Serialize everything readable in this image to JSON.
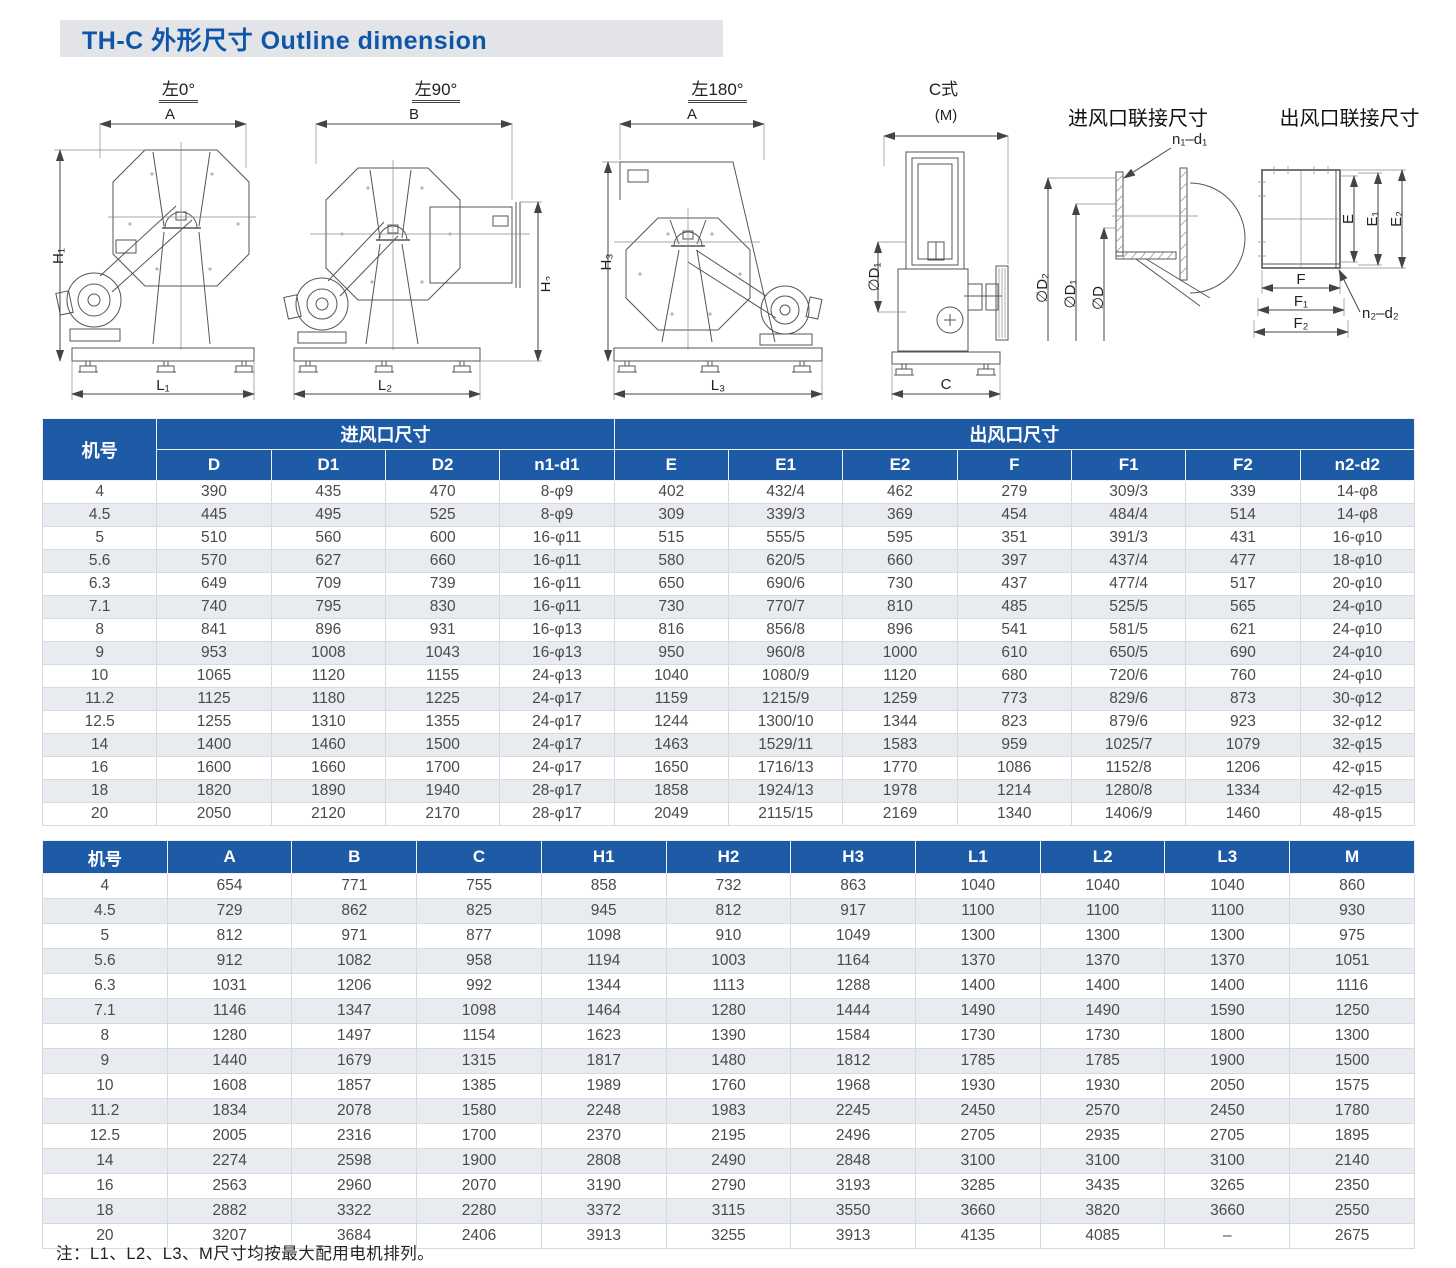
{
  "page": {
    "title": "TH-C 外形尺寸 Outline dimension",
    "note": "注：L1、L2、L3、M尺寸均按最大配用电机排列。"
  },
  "figures": [
    {
      "title": "左0°",
      "dim_top": "A",
      "dim_side": "H₁",
      "dim_bottom": "L₁"
    },
    {
      "title": "左90°",
      "dim_top": "B",
      "dim_side": "H₂",
      "dim_bottom": "L₂"
    },
    {
      "title": "左180°",
      "dim_top": "A",
      "dim_side": "H₃",
      "dim_bottom": "L₃"
    },
    {
      "title": "C式",
      "dim_top": "(M)",
      "dim_side": "∅D₁",
      "dim_bottom": "C"
    },
    {
      "title": "进风口联接尺寸",
      "bolt_label": "n₁–d₁",
      "dia_labels": [
        "∅D₂",
        "∅D₁",
        "∅D"
      ]
    },
    {
      "title": "出风口联接尺寸",
      "v_dims": [
        "E",
        "E₁",
        "E₂"
      ],
      "h_dims": [
        "F",
        "F₁",
        "F₂"
      ],
      "bolt_label": "n₂–d₂"
    }
  ],
  "table1": {
    "col_machine": "机号",
    "group_inlet": "进风口尺寸",
    "group_outlet": "出风口尺寸",
    "columns": [
      "D",
      "D1",
      "D2",
      "n1-d1",
      "E",
      "E1",
      "E2",
      "F",
      "F1",
      "F2",
      "n2-d2"
    ],
    "rows": [
      [
        "4",
        "390",
        "435",
        "470",
        "8-φ9",
        "402",
        "432/4",
        "462",
        "279",
        "309/3",
        "339",
        "14-φ8"
      ],
      [
        "4.5",
        "445",
        "495",
        "525",
        "8-φ9",
        "309",
        "339/3",
        "369",
        "454",
        "484/4",
        "514",
        "14-φ8"
      ],
      [
        "5",
        "510",
        "560",
        "600",
        "16-φ11",
        "515",
        "555/5",
        "595",
        "351",
        "391/3",
        "431",
        "16-φ10"
      ],
      [
        "5.6",
        "570",
        "627",
        "660",
        "16-φ11",
        "580",
        "620/5",
        "660",
        "397",
        "437/4",
        "477",
        "18-φ10"
      ],
      [
        "6.3",
        "649",
        "709",
        "739",
        "16-φ11",
        "650",
        "690/6",
        "730",
        "437",
        "477/4",
        "517",
        "20-φ10"
      ],
      [
        "7.1",
        "740",
        "795",
        "830",
        "16-φ11",
        "730",
        "770/7",
        "810",
        "485",
        "525/5",
        "565",
        "24-φ10"
      ],
      [
        "8",
        "841",
        "896",
        "931",
        "16-φ13",
        "816",
        "856/8",
        "896",
        "541",
        "581/5",
        "621",
        "24-φ10"
      ],
      [
        "9",
        "953",
        "1008",
        "1043",
        "16-φ13",
        "950",
        "960/8",
        "1000",
        "610",
        "650/5",
        "690",
        "24-φ10"
      ],
      [
        "10",
        "1065",
        "1120",
        "1155",
        "24-φ13",
        "1040",
        "1080/9",
        "1120",
        "680",
        "720/6",
        "760",
        "24-φ10"
      ],
      [
        "11.2",
        "1125",
        "1180",
        "1225",
        "24-φ17",
        "1159",
        "1215/9",
        "1259",
        "773",
        "829/6",
        "873",
        "30-φ12"
      ],
      [
        "12.5",
        "1255",
        "1310",
        "1355",
        "24-φ17",
        "1244",
        "1300/10",
        "1344",
        "823",
        "879/6",
        "923",
        "32-φ12"
      ],
      [
        "14",
        "1400",
        "1460",
        "1500",
        "24-φ17",
        "1463",
        "1529/11",
        "1583",
        "959",
        "1025/7",
        "1079",
        "32-φ15"
      ],
      [
        "16",
        "1600",
        "1660",
        "1700",
        "24-φ17",
        "1650",
        "1716/13",
        "1770",
        "1086",
        "1152/8",
        "1206",
        "42-φ15"
      ],
      [
        "18",
        "1820",
        "1890",
        "1940",
        "28-φ17",
        "1858",
        "1924/13",
        "1978",
        "1214",
        "1280/8",
        "1334",
        "42-φ15"
      ],
      [
        "20",
        "2050",
        "2120",
        "2170",
        "28-φ17",
        "2049",
        "2115/15",
        "2169",
        "1340",
        "1406/9",
        "1460",
        "48-φ15"
      ]
    ]
  },
  "table2": {
    "columns": [
      "机号",
      "A",
      "B",
      "C",
      "H1",
      "H2",
      "H3",
      "L1",
      "L2",
      "L3",
      "M"
    ],
    "rows": [
      [
        "4",
        "654",
        "771",
        "755",
        "858",
        "732",
        "863",
        "1040",
        "1040",
        "1040",
        "860"
      ],
      [
        "4.5",
        "729",
        "862",
        "825",
        "945",
        "812",
        "917",
        "1100",
        "1100",
        "1100",
        "930"
      ],
      [
        "5",
        "812",
        "971",
        "877",
        "1098",
        "910",
        "1049",
        "1300",
        "1300",
        "1300",
        "975"
      ],
      [
        "5.6",
        "912",
        "1082",
        "958",
        "1194",
        "1003",
        "1164",
        "1370",
        "1370",
        "1370",
        "1051"
      ],
      [
        "6.3",
        "1031",
        "1206",
        "992",
        "1344",
        "1113",
        "1288",
        "1400",
        "1400",
        "1400",
        "1116"
      ],
      [
        "7.1",
        "1146",
        "1347",
        "1098",
        "1464",
        "1280",
        "1444",
        "1490",
        "1490",
        "1590",
        "1250"
      ],
      [
        "8",
        "1280",
        "1497",
        "1154",
        "1623",
        "1390",
        "1584",
        "1730",
        "1730",
        "1800",
        "1300"
      ],
      [
        "9",
        "1440",
        "1679",
        "1315",
        "1817",
        "1480",
        "1812",
        "1785",
        "1785",
        "1900",
        "1500"
      ],
      [
        "10",
        "1608",
        "1857",
        "1385",
        "1989",
        "1760",
        "1968",
        "1930",
        "1930",
        "2050",
        "1575"
      ],
      [
        "11.2",
        "1834",
        "2078",
        "1580",
        "2248",
        "1983",
        "2245",
        "2450",
        "2570",
        "2450",
        "1780"
      ],
      [
        "12.5",
        "2005",
        "2316",
        "1700",
        "2370",
        "2195",
        "2496",
        "2705",
        "2935",
        "2705",
        "1895"
      ],
      [
        "14",
        "2274",
        "2598",
        "1900",
        "2808",
        "2490",
        "2848",
        "3100",
        "3100",
        "3100",
        "2140"
      ],
      [
        "16",
        "2563",
        "2960",
        "2070",
        "3190",
        "2790",
        "3193",
        "3285",
        "3435",
        "3265",
        "2350"
      ],
      [
        "18",
        "2882",
        "3322",
        "2280",
        "3372",
        "3115",
        "3550",
        "3660",
        "3820",
        "3660",
        "2550"
      ],
      [
        "20",
        "3207",
        "3684",
        "2406",
        "3913",
        "3255",
        "3913",
        "4135",
        "4085",
        "–",
        "2675"
      ]
    ]
  }
}
